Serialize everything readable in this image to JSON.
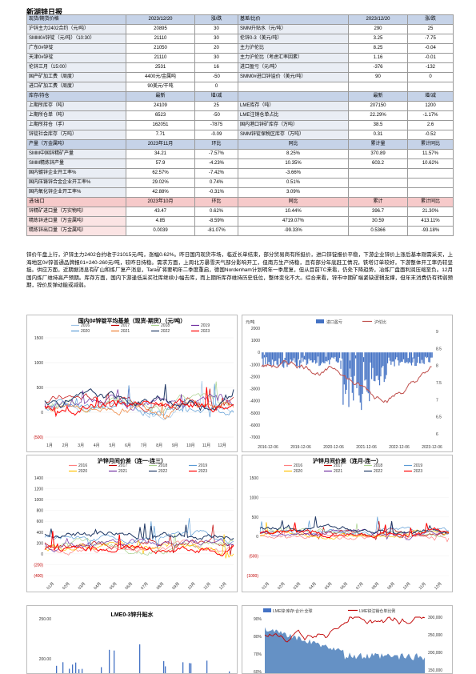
{
  "title": "新湖锌日报",
  "rows": [
    {
      "cls": "hdr-b",
      "cells": [
        [
          "现货/期货价格",
          "lbl"
        ],
        [
          "2023/12/20",
          "c hb"
        ],
        [
          "涨/跌",
          "c hb"
        ],
        [
          "基差/比价",
          "hb"
        ],
        [
          "2023/12/20",
          "c hb"
        ],
        [
          "涨/跌",
          "c hb"
        ]
      ]
    },
    {
      "cells": [
        [
          "沪锌主力2402合约（元/吨）",
          "lbl"
        ],
        [
          "20895",
          "c"
        ],
        [
          "30",
          "c"
        ],
        [
          "SMM升贴水（元/吨）",
          "lbl"
        ],
        [
          "290",
          "c"
        ],
        [
          "25",
          "c"
        ]
      ]
    },
    {
      "cells": [
        [
          "SMM0#锌锭（元/吨）（10:30）",
          "lbl"
        ],
        [
          "21110",
          "c"
        ],
        [
          "30",
          "c"
        ],
        [
          "伦锌0-3（美元/吨）",
          "lbl"
        ],
        [
          "3.25",
          "c"
        ],
        [
          "-7.75",
          "c"
        ]
      ]
    },
    {
      "cells": [
        [
          "广东0#锌锭",
          "lbl"
        ],
        [
          "21050",
          "c"
        ],
        [
          "20",
          "c"
        ],
        [
          "主力沪伦比",
          "lbl"
        ],
        [
          "8.25",
          "c"
        ],
        [
          "-0.04",
          "c"
        ]
      ]
    },
    {
      "cells": [
        [
          "天津0#锌锭",
          "lbl"
        ],
        [
          "21110",
          "c"
        ],
        [
          "30",
          "c"
        ],
        [
          "主力沪伦比（考虑汇率因素）",
          "lbl"
        ],
        [
          "1.16",
          "c"
        ],
        [
          "-0.01",
          "c"
        ]
      ]
    },
    {
      "cells": [
        [
          "伦锌三月（15:00）",
          "lbl"
        ],
        [
          "2531",
          "c"
        ],
        [
          "16",
          "c"
        ],
        [
          "进口盈亏（元/吨）",
          "lbl"
        ],
        [
          "-376",
          "c"
        ],
        [
          "-132",
          "c"
        ]
      ]
    },
    {
      "cells": [
        [
          "国产矿加工费（周度）",
          "lbl"
        ],
        [
          "4400元/金属吨",
          "c"
        ],
        [
          "-50",
          "c"
        ],
        [
          "SMM0#进口锌溢价（美元/吨）",
          "lbl"
        ],
        [
          "90",
          "c"
        ],
        [
          "0",
          "c"
        ]
      ]
    },
    {
      "cells": [
        [
          "进口矿加工费（周度）",
          "lbl"
        ],
        [
          "90美元/干吨",
          "c"
        ],
        [
          "0",
          "c"
        ],
        [
          "",
          ""
        ],
        [
          "",
          ""
        ],
        [
          "",
          ""
        ]
      ]
    },
    {
      "cls": "hdr-b",
      "cells": [
        [
          "库存/持仓",
          "hb"
        ],
        [
          "最新",
          "c hb"
        ],
        [
          "增/减",
          "c hb"
        ],
        [
          "",
          "hb"
        ],
        [
          "最新",
          "c hb"
        ],
        [
          "增/减",
          "c hb"
        ]
      ]
    },
    {
      "cells": [
        [
          "上期所库存（吨）",
          "lbl"
        ],
        [
          "24109",
          "c"
        ],
        [
          "25",
          "c"
        ],
        [
          "LME库存（吨）",
          "lbl"
        ],
        [
          "207150",
          "c"
        ],
        [
          "1200",
          "c"
        ]
      ]
    },
    {
      "cells": [
        [
          "上期所仓单（吨）",
          "lbl"
        ],
        [
          "6523",
          "c"
        ],
        [
          "-50",
          "c"
        ],
        [
          "LME注销仓单占比",
          "lbl"
        ],
        [
          "22.29%",
          "c"
        ],
        [
          "-1.17%",
          "c"
        ]
      ]
    },
    {
      "cells": [
        [
          "上期所持仓（手）",
          "lbl"
        ],
        [
          "162051",
          "c"
        ],
        [
          "-7875",
          "c"
        ],
        [
          "国内港口锌矿库存（万吨）",
          "lbl"
        ],
        [
          "38.5",
          "c"
        ],
        [
          "2.6",
          "c"
        ]
      ]
    },
    {
      "cells": [
        [
          "锌锭社会库存（万吨）",
          "lbl"
        ],
        [
          "7.71",
          "c"
        ],
        [
          "-0.09",
          "c"
        ],
        [
          "SMM锌锭保税区库存（万吨）",
          "lbl"
        ],
        [
          "0.31",
          "c"
        ],
        [
          "-0.52",
          "c"
        ]
      ]
    },
    {
      "cls": "hdr-b",
      "cells": [
        [
          "产量（万金属吨）",
          "hb"
        ],
        [
          "2023年11月",
          "c hb"
        ],
        [
          "环比",
          "c hb"
        ],
        [
          "同比",
          "c hb"
        ],
        [
          "累计量",
          "c hb"
        ],
        [
          "累计同比",
          "c hb"
        ]
      ]
    },
    {
      "cells": [
        [
          "SMM中国锌精矿产量",
          "lbl"
        ],
        [
          "34.21",
          "c"
        ],
        [
          "-7.57%",
          "c"
        ],
        [
          "8.25%",
          "c"
        ],
        [
          "370.89",
          "c"
        ],
        [
          "11.57%",
          "c"
        ]
      ]
    },
    {
      "cells": [
        [
          "SMM精炼锌产量",
          "lbl"
        ],
        [
          "57.9",
          "c"
        ],
        [
          "-4.23%",
          "c"
        ],
        [
          "10.35%",
          "c"
        ],
        [
          "603.2",
          "c"
        ],
        [
          "10.62%",
          "c"
        ]
      ]
    },
    {
      "cells": [
        [
          "国内镀锌企业开工率%",
          "lbl"
        ],
        [
          "62.57%",
          "c"
        ],
        [
          "-7.42%",
          "c"
        ],
        [
          "-3.66%",
          "c"
        ],
        [
          "",
          ""
        ],
        [
          "",
          ""
        ]
      ]
    },
    {
      "cells": [
        [
          "国内压铸锌合金企业开工率%",
          "lbl"
        ],
        [
          "29.02%",
          "c"
        ],
        [
          "0.74%",
          "c"
        ],
        [
          "0.51%",
          "c"
        ],
        [
          "",
          ""
        ],
        [
          "",
          ""
        ]
      ]
    },
    {
      "cells": [
        [
          "国内氧化锌企业开工率%",
          "lbl"
        ],
        [
          "42.88%",
          "c"
        ],
        [
          "-0.31%",
          "c"
        ],
        [
          "3.09%",
          "c"
        ],
        [
          "",
          ""
        ],
        [
          "",
          ""
        ]
      ]
    },
    {
      "cls": "hdr-r",
      "cells": [
        [
          "进/出口",
          "hr"
        ],
        [
          "2023年10月",
          "c hr"
        ],
        [
          "环比",
          "c hr"
        ],
        [
          "同比",
          "c hr"
        ],
        [
          "累计",
          "c hr"
        ],
        [
          "累计同比",
          "c hr"
        ]
      ]
    },
    {
      "cells": [
        [
          "锌精矿进口量（万实物吨）",
          "lbl-r"
        ],
        [
          "43.47",
          "c"
        ],
        [
          "0.62%",
          "c"
        ],
        [
          "10.44%",
          "c"
        ],
        [
          "396.7",
          "c"
        ],
        [
          "21.30%",
          "c"
        ]
      ]
    },
    {
      "cells": [
        [
          "精炼锌进口量（万金属吨）",
          "lbl-r"
        ],
        [
          "4.85",
          "c"
        ],
        [
          "-8.59%",
          "c"
        ],
        [
          "4719.07%",
          "c"
        ],
        [
          "30.59",
          "c"
        ],
        [
          "413.11%",
          "c"
        ]
      ]
    },
    {
      "cells": [
        [
          "精炼锌出口量（万金属吨）",
          "lbl-r"
        ],
        [
          "0.0039",
          "c"
        ],
        [
          "-81.07%",
          "c"
        ],
        [
          "-99.33%",
          "c"
        ],
        [
          "0.5366",
          "c"
        ],
        [
          "-93.18%",
          "c"
        ]
      ]
    }
  ],
  "summary": "锌价午盘上行，沪锌主力2402合约收于21015元/吨，涨幅0.62%。昨日国内现货市场，临近长单结束，部分贸易商有所挺价，进口锌锭报价平稳，下游企业锌价上涨后基本刚需采买，上海地区0#锌普通品牌报01+240-260元/吨，较昨日持稳。需求方面，上周北方暴雪天气部分影响开工，但南方生产持稳，且有部分年底赶工情况，铁塔订单较好，下游整体开工率仍较坚挺。供应方面，近期据消息有矿山和炼厂复产消息，Tara矿将要明年二季度重启，德国Nordenham计划明年一季度复，但从目前TC来看，仍处下降趋势，冶炼厂盘面利润压缩至负。12月国内炼厂维持高产预期。库存方面，国内下游逢低采买社库继续小幅去库，而上期所库存维持历史低位，整体变化不大。综合来看，锌市中期矿端紧缺逻辑支撑，但年末消费仍有转弱预期，锌价反弹动能或减弱。",
  "charts": {
    "c1": {
      "title": "国内0#锌锭平均基差（现货-期货）（元/吨）",
      "legend": [
        "2016",
        "2017",
        "2018",
        "2019",
        "2020",
        "2021",
        "2022",
        "2023"
      ],
      "colors": [
        "#9dc3e6",
        "#c00000",
        "#a9d18e",
        "#7030a0",
        "#5b9bd5",
        "#ed7d31",
        "#203864",
        "#ff0000"
      ],
      "yticks": [
        "1500",
        "1000",
        "500",
        "0",
        "(500)"
      ],
      "xticks": [
        "1月",
        "2月",
        "3月",
        "4月",
        "5月",
        "6月",
        "7月",
        "8月",
        "9月",
        "10月",
        "11月",
        "12月"
      ]
    },
    "c2": {
      "ylabel": "元/吨",
      "legend": [
        "进口盈亏",
        "沪伦比"
      ],
      "colors": [
        "#4472c4",
        "#c0504d"
      ],
      "yticks": [
        "2000",
        "1000",
        "0",
        "-1000",
        "-2000",
        "-3000",
        "-4000",
        "-5000",
        "-6000",
        "-7000"
      ],
      "yticks_r": [
        "9",
        "8.5",
        "8",
        "7.5",
        "7",
        "6.5",
        "6"
      ],
      "xticks": [
        "2016-12-06",
        "2019-12-06",
        "2020-12-06",
        "2021-12-06",
        "2022-12-06",
        "2023-12-06"
      ]
    },
    "c3": {
      "title": "沪锌月间价差（连一-连三）",
      "legend": [
        "2016",
        "2017",
        "2018",
        "2019",
        "2020",
        "2021",
        "2022",
        "2023"
      ],
      "colors": [
        "#ff8080",
        "#c00000",
        "#a9d18e",
        "#5b9bd5",
        "#ffc000",
        "#7030a0",
        "#203864",
        "#ff0000"
      ],
      "yticks": [
        "1400",
        "1200",
        "1000",
        "800",
        "600",
        "400",
        "200",
        "0",
        "(200)",
        "(400)"
      ],
      "xticks": [
        "01月",
        "02月",
        "03月",
        "04月",
        "05月",
        "06月",
        "07月",
        "08月",
        "09月",
        "10月",
        "11月",
        "12月"
      ]
    },
    "c4": {
      "title": "沪锌月间价差（连月-连一）",
      "legend": [
        "2016",
        "2017",
        "2018",
        "2019",
        "2020",
        "2021",
        "2022",
        "2023"
      ],
      "colors": [
        "#ff8080",
        "#c00000",
        "#a9d18e",
        "#5b9bd5",
        "#ffc000",
        "#7030a0",
        "#203864",
        "#ff0000"
      ],
      "yticks": [
        "1500",
        "1000",
        "500",
        "0",
        "(500)",
        "(1000)"
      ],
      "xticks": [
        "01月",
        "02月",
        "03月",
        "04月",
        "05月",
        "06月",
        "07月",
        "08月",
        "09月",
        "10月",
        "11月",
        "12月"
      ]
    },
    "c5": {
      "title": "LME0-3锌升贴水",
      "yticks": [
        "250.00",
        "200.00"
      ]
    },
    "c6": {
      "legend": [
        "LME锌:库存:合计:全球",
        "LME锌注销仓单比例"
      ],
      "colors": [
        "#4472c4",
        "#c00000"
      ],
      "yticks": [
        "90%",
        "80%",
        "70%",
        "60%"
      ],
      "yticks_r": [
        "300,000",
        "250,000",
        "200,000",
        "150,000"
      ]
    }
  }
}
